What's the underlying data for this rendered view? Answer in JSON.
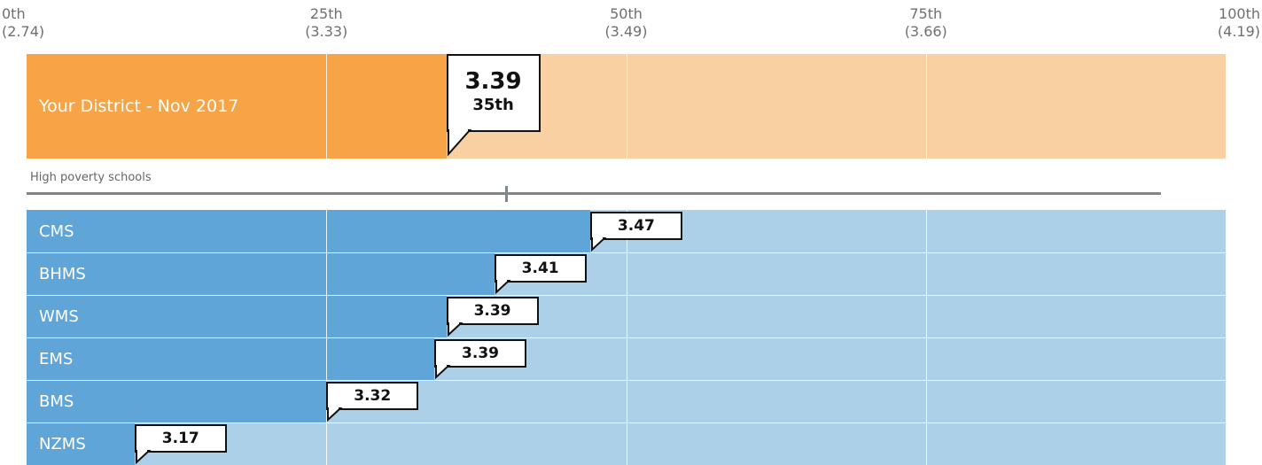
{
  "chart_data": {
    "type": "bar",
    "axis": {
      "percentiles": [
        "0th",
        "25th",
        "50th",
        "75th",
        "100th"
      ],
      "values": [
        "(2.74)",
        "(3.33)",
        "(3.49)",
        "(3.66)",
        "(4.19)"
      ]
    },
    "district": {
      "label": "Your District - Nov 2017",
      "value": 3.39,
      "value_label": "3.39",
      "percentile": 35,
      "percentile_label": "35th"
    },
    "subgroup_label": "High poverty schools",
    "reference_percentile": 40,
    "schools": [
      {
        "name": "CMS",
        "value": 3.47,
        "value_label": "3.47",
        "percentile": 47
      },
      {
        "name": "BHMS",
        "value": 3.41,
        "value_label": "3.41",
        "percentile": 39
      },
      {
        "name": "WMS",
        "value": 3.39,
        "value_label": "3.39",
        "percentile": 35
      },
      {
        "name": "EMS",
        "value": 3.39,
        "value_label": "3.39",
        "percentile": 34
      },
      {
        "name": "BMS",
        "value": 3.32,
        "value_label": "3.32",
        "percentile": 25
      },
      {
        "name": "NZMS",
        "value": 3.17,
        "value_label": "3.17",
        "percentile": 9
      }
    ],
    "colors": {
      "district_fill": "#f7a447",
      "district_band": "#f9d0a1",
      "school_fill": "#5fa5d8",
      "school_band": "#acd0e8"
    }
  }
}
